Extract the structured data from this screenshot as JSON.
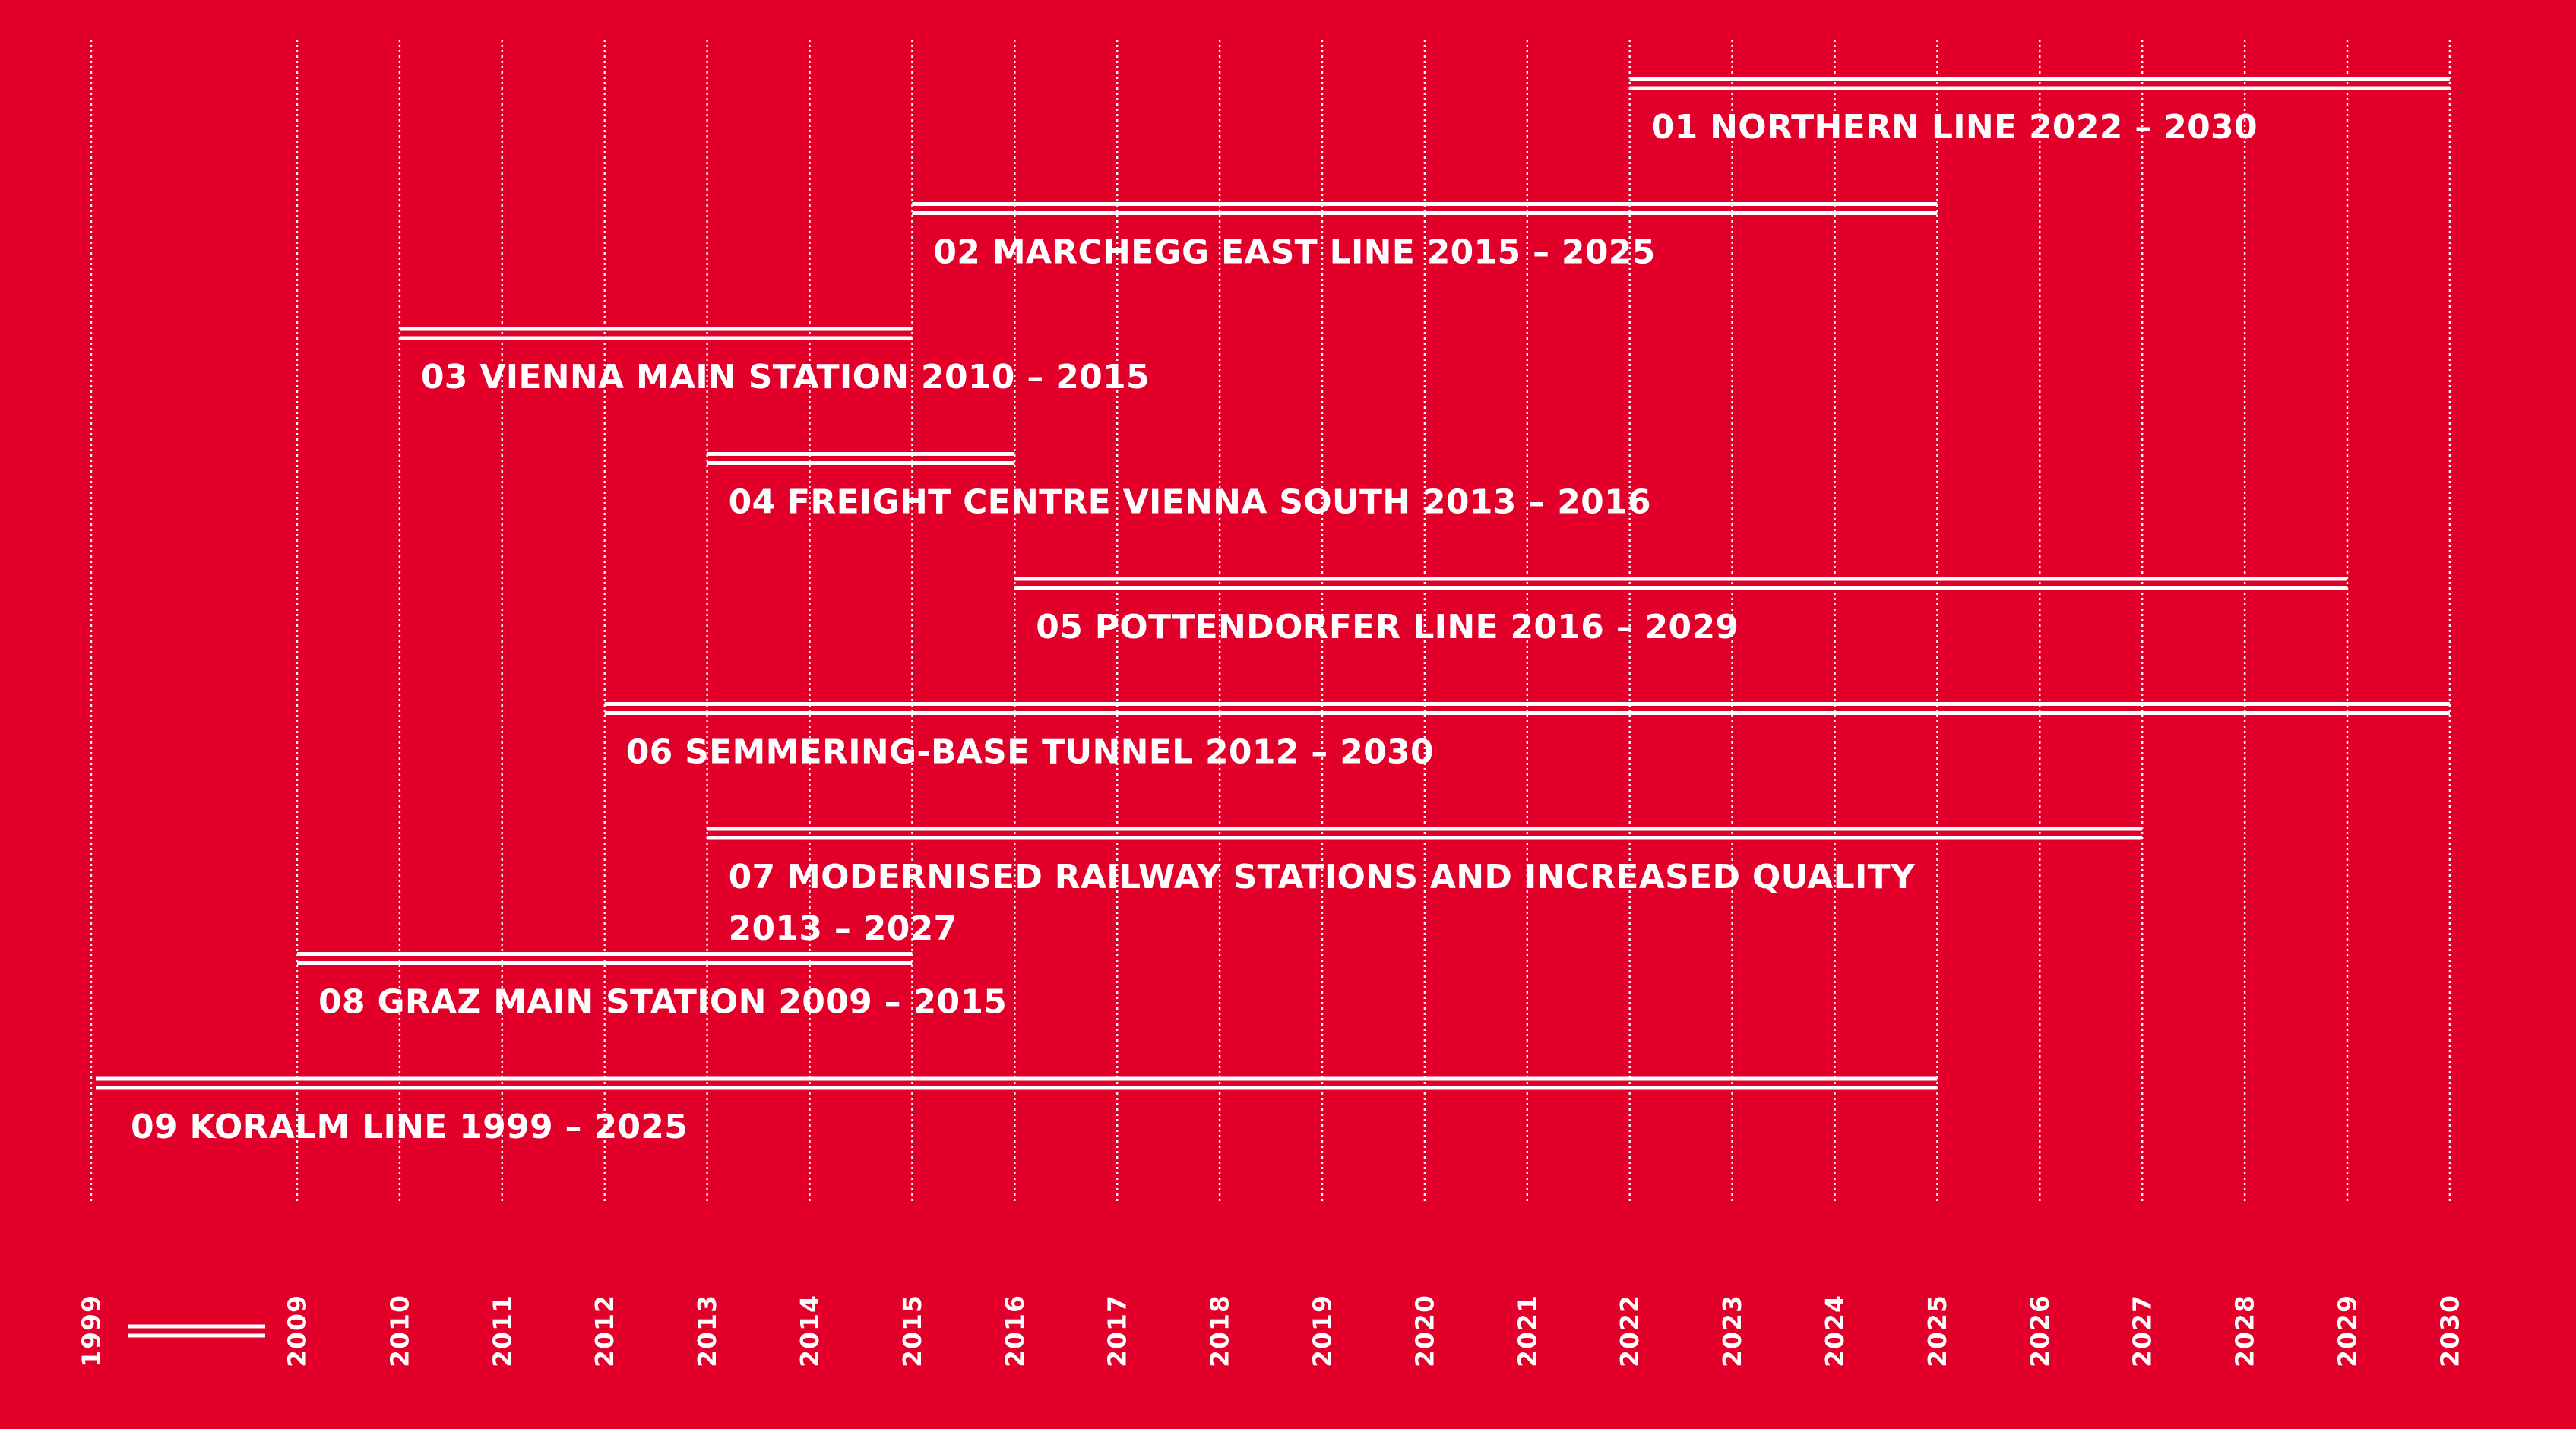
{
  "colors": {
    "background": "#E2002A",
    "foreground": "#FFFFFF"
  },
  "chart_data": {
    "type": "timeline",
    "axis": {
      "start": 1999,
      "end": 2030,
      "break_after": 1999,
      "break_before": 2009,
      "gridlines": true,
      "ticks": [
        1999,
        2009,
        2010,
        2011,
        2012,
        2013,
        2014,
        2015,
        2016,
        2017,
        2018,
        2019,
        2020,
        2021,
        2022,
        2023,
        2024,
        2025,
        2026,
        2027,
        2028,
        2029,
        2030
      ]
    },
    "projects": [
      {
        "label": "01 NORTHERN LINE 2022 – 2030",
        "start": 2022,
        "end": 2030
      },
      {
        "label": "02 MARCHEGG EAST LINE  2015 – 2025",
        "start": 2015,
        "end": 2025
      },
      {
        "label": "03 VIENNA MAIN STATION 2010 – 2015",
        "start": 2010,
        "end": 2015
      },
      {
        "label": "04 FREIGHT CENTRE VIENNA SOUTH  2013 – 2016",
        "start": 2013,
        "end": 2016
      },
      {
        "label": "05 POTTENDORFER LINE 2016 – 2029",
        "start": 2016,
        "end": 2029
      },
      {
        "label": "06 SEMMERING-BASE TUNNEL 2012 – 2030",
        "start": 2012,
        "end": 2030
      },
      {
        "label": "07 MODERNISED RAILWAY STATIONS AND INCREASED QUALITY",
        "label2": "2013 – 2027",
        "start": 2013,
        "end": 2027
      },
      {
        "label": "08 GRAZ MAIN STATION 2009 – 2015",
        "start": 2009,
        "end": 2015
      },
      {
        "label": "09 KORALM LINE 1999 – 2025",
        "start": 1999,
        "end": 2025
      }
    ]
  }
}
